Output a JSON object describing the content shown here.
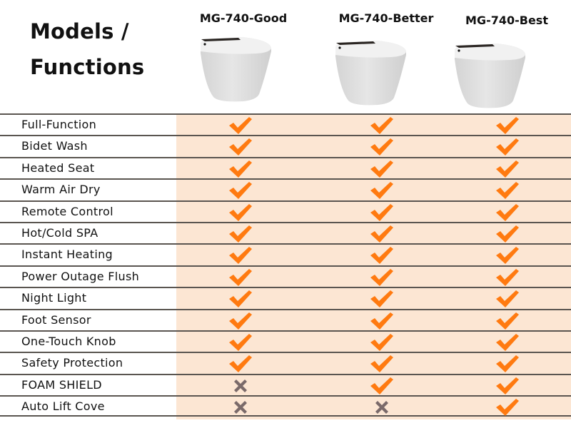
{
  "header": {
    "title_line1": "Models /",
    "title_line2": "Functions"
  },
  "models": [
    {
      "name": "MG-740-Good"
    },
    {
      "name": "MG-740-Better"
    },
    {
      "name": "MG-740-Best"
    }
  ],
  "colors": {
    "shade": "#FCE6D3",
    "check": "#FF7A10",
    "cross": "#7A6A6A",
    "rule": "#5a5550"
  },
  "features": [
    {
      "label": "Full-Function",
      "values": [
        "check",
        "check",
        "check"
      ]
    },
    {
      "label": "Bidet Wash",
      "values": [
        "check",
        "check",
        "check"
      ]
    },
    {
      "label": "Heated Seat",
      "values": [
        "check",
        "check",
        "check"
      ]
    },
    {
      "label": "Warm Air Dry",
      "values": [
        "check",
        "check",
        "check"
      ]
    },
    {
      "label": "Remote Control",
      "values": [
        "check",
        "check",
        "check"
      ]
    },
    {
      "label": "Hot/Cold SPA",
      "values": [
        "check",
        "check",
        "check"
      ]
    },
    {
      "label": "Instant Heating",
      "values": [
        "check",
        "check",
        "check"
      ]
    },
    {
      "label": "Power Outage Flush",
      "values": [
        "check",
        "check",
        "check"
      ]
    },
    {
      "label": "Night Light",
      "values": [
        "check",
        "check",
        "check"
      ]
    },
    {
      "label": "Foot Sensor",
      "values": [
        "check",
        "check",
        "check"
      ]
    },
    {
      "label": "One-Touch Knob",
      "values": [
        "check",
        "check",
        "check"
      ]
    },
    {
      "label": "Safety Protection",
      "values": [
        "check",
        "check",
        "check"
      ]
    },
    {
      "label": "FOAM SHIELD",
      "values": [
        "cross",
        "check",
        "check"
      ]
    },
    {
      "label": "Auto Lift Cove",
      "values": [
        "cross",
        "cross",
        "check"
      ]
    }
  ]
}
